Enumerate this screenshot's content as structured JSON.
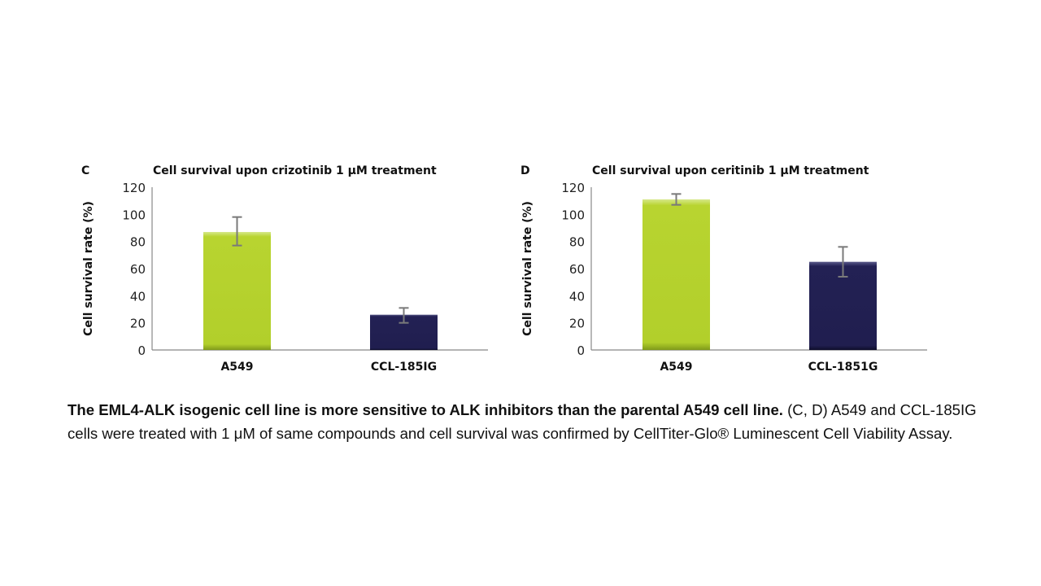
{
  "chart_data": [
    {
      "type": "bar",
      "panel": "C",
      "title": "Cell survival upon crizotinib 1 μM treatment",
      "ylabel": "Cell survival rate (%)",
      "xlabel": "",
      "ylim": [
        0,
        120
      ],
      "yticks": [
        0,
        20,
        40,
        60,
        80,
        100,
        120
      ],
      "grid": false,
      "categories": [
        "A549",
        "CCL-185IG"
      ],
      "values": [
        87,
        26
      ],
      "error_low": [
        77,
        20
      ],
      "error_high": [
        98,
        31
      ],
      "colors": [
        "#b5d12e",
        "#201e4f"
      ]
    },
    {
      "type": "bar",
      "panel": "D",
      "title": "Cell survival upon ceritinib 1 μM treatment",
      "ylabel": "Cell survival rate (%)",
      "xlabel": "",
      "ylim": [
        0,
        120
      ],
      "yticks": [
        0,
        20,
        40,
        60,
        80,
        100,
        120
      ],
      "grid": false,
      "categories": [
        "A549",
        "CCL-1851G"
      ],
      "values": [
        111,
        65
      ],
      "error_low": [
        107,
        54
      ],
      "error_high": [
        115,
        76
      ],
      "colors": [
        "#b5d12e",
        "#201e4f"
      ]
    }
  ],
  "caption": {
    "bold": "The EML4-ALK isogenic cell line is more sensitive to ALK inhibitors than the parental A549 cell line.",
    "text": " (C, D) A549 and CCL-185IG  cells were treated with 1 μM of same compounds and cell survival was confirmed by CellTiter-Glo® Luminescent Cell Viability Assay."
  }
}
